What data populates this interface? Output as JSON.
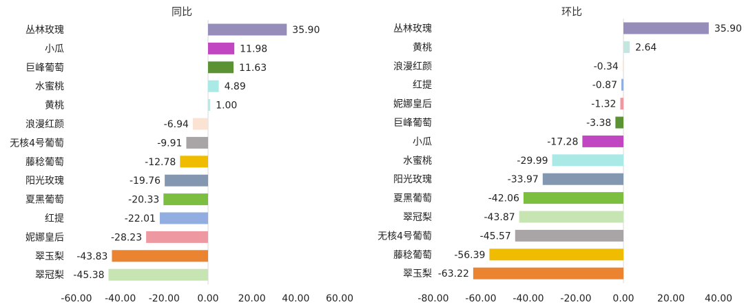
{
  "chart_data": [
    {
      "type": "bar",
      "orientation": "horizontal",
      "title": "同比",
      "xlim": [
        -60,
        60
      ],
      "xticks": [
        "-60.00",
        "-40.00",
        "-20.00",
        "0.00",
        "20.00",
        "40.00",
        "60.00"
      ],
      "grid": false,
      "legend": "none",
      "bars": [
        {
          "category": "丛林玫瑰",
          "value": 35.9,
          "label": "35.90",
          "color": "#968DBA"
        },
        {
          "category": "小瓜",
          "value": 11.98,
          "label": "11.98",
          "color": "#C146C1"
        },
        {
          "category": "巨峰葡萄",
          "value": 11.63,
          "label": "11.63",
          "color": "#5A9234"
        },
        {
          "category": "水蜜桃",
          "value": 4.89,
          "label": "4.89",
          "color": "#A9E9E6"
        },
        {
          "category": "黄桃",
          "value": 1.0,
          "label": "1.00",
          "color": "#C2E6E0"
        },
        {
          "category": "浪漫红颜",
          "value": -6.94,
          "label": "-6.94",
          "color": "#FBE3D3"
        },
        {
          "category": "无核4号葡萄",
          "value": -9.91,
          "label": "-9.91",
          "color": "#A9A5A6"
        },
        {
          "category": "藤稔葡萄",
          "value": -12.78,
          "label": "-12.78",
          "color": "#F0BC00"
        },
        {
          "category": "阳光玫瑰",
          "value": -19.76,
          "label": "-19.76",
          "color": "#8497B0"
        },
        {
          "category": "夏黑葡萄",
          "value": -20.33,
          "label": "-20.33",
          "color": "#7BBE40"
        },
        {
          "category": "红提",
          "value": -22.01,
          "label": "-22.01",
          "color": "#92AEE1"
        },
        {
          "category": "妮娜皇后",
          "value": -28.23,
          "label": "-28.23",
          "color": "#EE99A1"
        },
        {
          "category": "翠玉梨",
          "value": -43.83,
          "label": "-43.83",
          "color": "#EB8431"
        },
        {
          "category": "翠冠梨",
          "value": -45.38,
          "label": "-45.38",
          "color": "#C7E5B3"
        }
      ]
    },
    {
      "type": "bar",
      "orientation": "horizontal",
      "title": "环比",
      "xlim": [
        -80,
        40
      ],
      "xticks": [
        "-80.00",
        "-60.00",
        "-40.00",
        "-20.00",
        "0.00",
        "20.00",
        "40.00"
      ],
      "grid": false,
      "legend": "none",
      "bars": [
        {
          "category": "丛林玫瑰",
          "value": 35.9,
          "label": "35.90",
          "color": "#968DBA"
        },
        {
          "category": "黄桃",
          "value": 2.64,
          "label": "2.64",
          "color": "#C2E6E0"
        },
        {
          "category": "浪漫红颜",
          "value": -0.34,
          "label": "-0.34",
          "color": "#FBE3D3"
        },
        {
          "category": "红提",
          "value": -0.87,
          "label": "-0.87",
          "color": "#92AEE1"
        },
        {
          "category": "妮娜皇后",
          "value": -1.32,
          "label": "-1.32",
          "color": "#EE99A1"
        },
        {
          "category": "巨峰葡萄",
          "value": -3.38,
          "label": "-3.38",
          "color": "#5A9234"
        },
        {
          "category": "小瓜",
          "value": -17.28,
          "label": "-17.28",
          "color": "#C146C1"
        },
        {
          "category": "水蜜桃",
          "value": -29.99,
          "label": "-29.99",
          "color": "#A9E9E6"
        },
        {
          "category": "阳光玫瑰",
          "value": -33.97,
          "label": "-33.97",
          "color": "#8497B0"
        },
        {
          "category": "夏黑葡萄",
          "value": -42.06,
          "label": "-42.06",
          "color": "#7BBE40"
        },
        {
          "category": "翠冠梨",
          "value": -43.87,
          "label": "-43.87",
          "color": "#C7E5B3"
        },
        {
          "category": "无核4号葡萄",
          "value": -45.57,
          "label": "-45.57",
          "color": "#A9A5A6"
        },
        {
          "category": "藤稔葡萄",
          "value": -56.39,
          "label": "-56.39",
          "color": "#F0BC00"
        },
        {
          "category": "翠玉梨",
          "value": -63.22,
          "label": "-63.22",
          "color": "#EB8431"
        }
      ]
    }
  ]
}
